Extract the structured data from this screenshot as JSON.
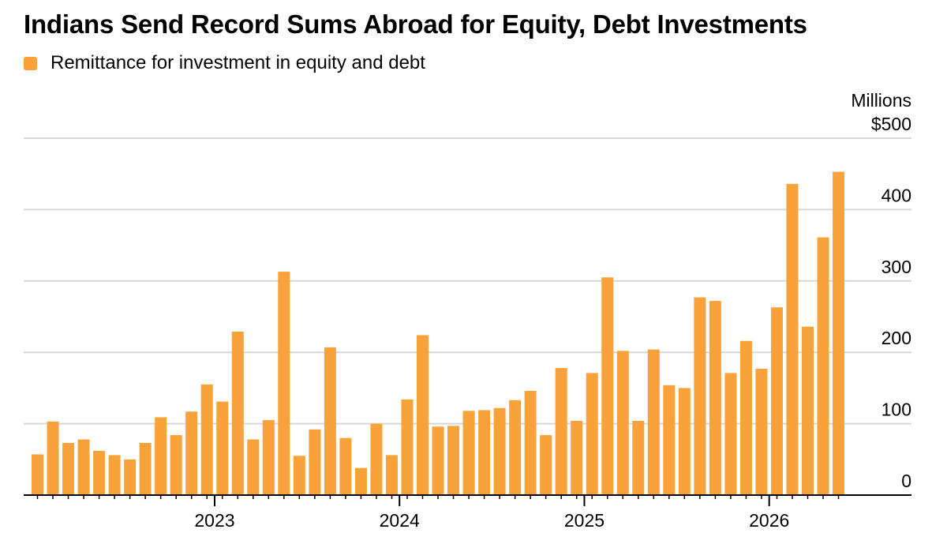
{
  "title": "Indians Send Record Sums Abroad for Equity, Debt Investments",
  "legend": {
    "label": "Remittance for investment in equity and debt",
    "color": "#f9a23a"
  },
  "chart_data": {
    "type": "bar",
    "title": "Indians Send Record Sums Abroad for Equity, Debt Investments",
    "xlabel": "",
    "ylabel": "",
    "unit_label": "Millions",
    "ylim": [
      0,
      500
    ],
    "y_ticks": [
      {
        "value": 0,
        "label": "0"
      },
      {
        "value": 100,
        "label": "100"
      },
      {
        "value": 200,
        "label": "200"
      },
      {
        "value": 300,
        "label": "300"
      },
      {
        "value": 400,
        "label": "400"
      },
      {
        "value": 500,
        "label": "$500"
      }
    ],
    "x_ticks": [
      {
        "index": 11.5,
        "label": "2023"
      },
      {
        "index": 23.5,
        "label": "2024"
      },
      {
        "index": 35.5,
        "label": "2025"
      },
      {
        "index": 47.5,
        "label": "2026"
      }
    ],
    "grid": true,
    "legend_position": "top-left",
    "color": "#f9a23a",
    "series": [
      {
        "name": "Remittance for investment in equity and debt",
        "values": [
          57,
          103,
          73,
          78,
          62,
          56,
          50,
          73,
          109,
          84,
          117,
          155,
          131,
          229,
          78,
          105,
          313,
          55,
          92,
          207,
          80,
          38,
          100,
          56,
          134,
          224,
          96,
          97,
          118,
          119,
          122,
          133,
          146,
          84,
          178,
          104,
          171,
          305,
          202,
          104,
          204,
          154,
          150,
          277,
          272,
          171,
          216,
          177,
          263,
          436,
          236,
          361,
          453
        ]
      }
    ]
  }
}
